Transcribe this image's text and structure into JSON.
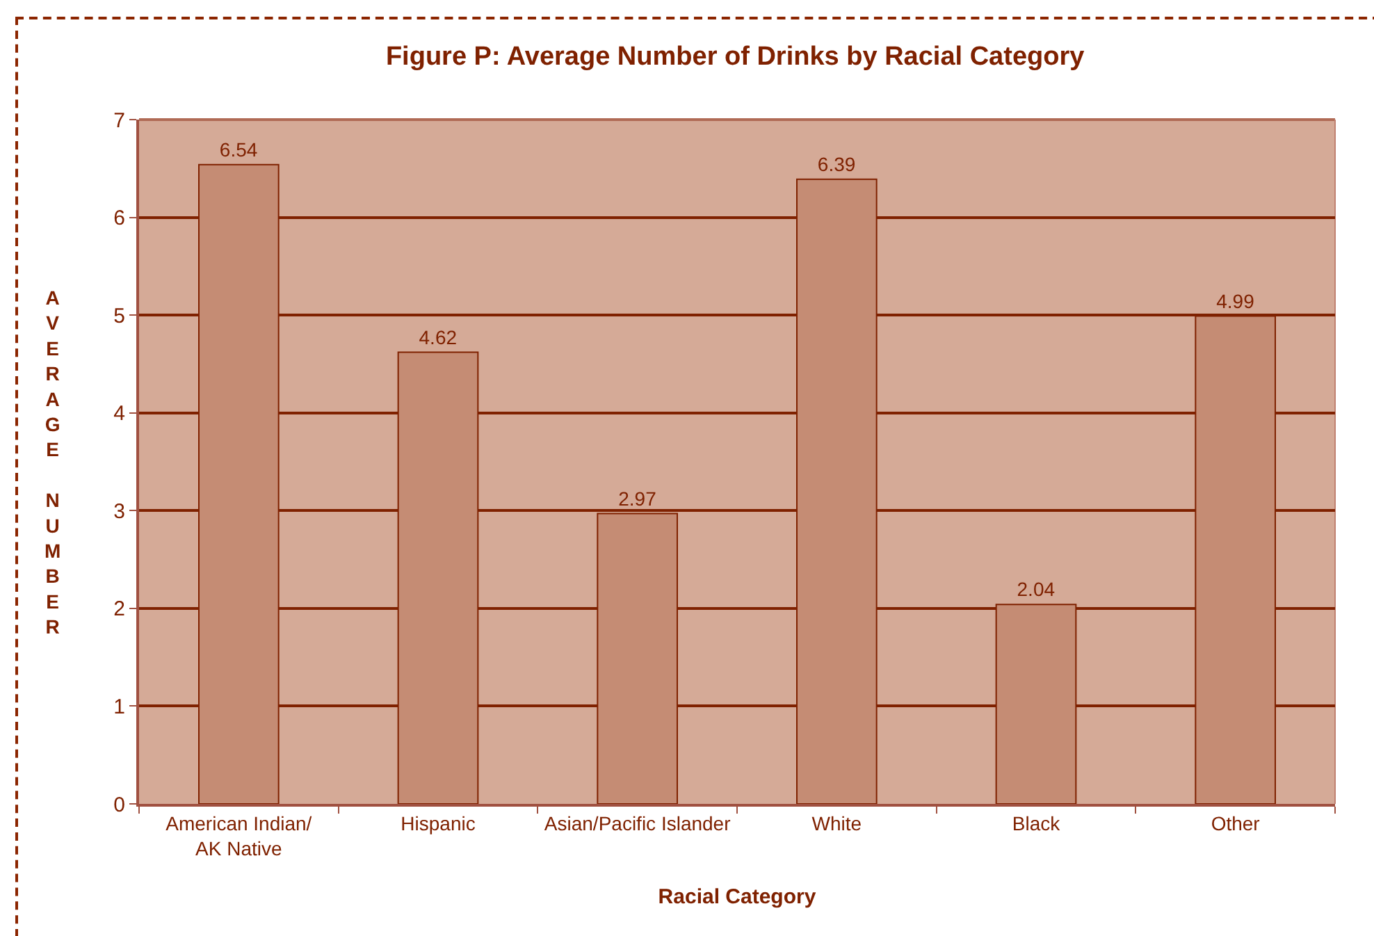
{
  "chart_data": {
    "type": "bar",
    "title": "Figure P: Average Number of Drinks by Racial Category",
    "xlabel": "Racial Category",
    "ylabel": "AVERAGE NUMBER",
    "categories": [
      "American Indian/\nAK Native",
      "Hispanic",
      "Asian/Pacific Islander",
      "White",
      "Black",
      "Other"
    ],
    "values": [
      6.54,
      4.62,
      2.97,
      6.39,
      2.04,
      4.99
    ],
    "color": "#c58c74",
    "ylim": [
      0,
      7
    ],
    "yticks": [
      0,
      1,
      2,
      3,
      4,
      5,
      6,
      7
    ],
    "grid": "y",
    "data_labels": true
  }
}
